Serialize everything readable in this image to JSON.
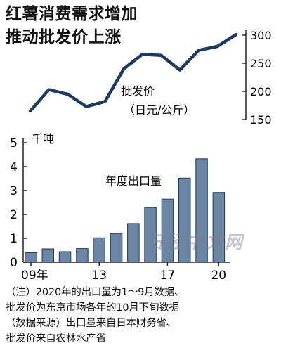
{
  "title_lines": [
    "红薯消费需求增加",
    "推动批发价上涨"
  ],
  "watermark": "日经中文网",
  "notes": [
    "（注）2020年的出口量为1～9月数据、",
    "批发价为东京市场各年的10月下旬数据",
    "（数据来源）出口量来自日本财务省、",
    "批发价来自农林水产省"
  ],
  "colors": {
    "line": "#1f3a5a",
    "bar": "#6a86a4",
    "bar_edge": "#1f3a5a",
    "axis": "#222222"
  },
  "chart_data": [
    {
      "type": "line",
      "series": [
        {
          "name": "批发价",
          "values": [
            165,
            203,
            195,
            173,
            182,
            240,
            266,
            264,
            238,
            273,
            280,
            301
          ]
        }
      ],
      "x": [
        "09",
        "10",
        "11",
        "12",
        "13",
        "14",
        "15",
        "16",
        "17",
        "18",
        "19",
        "20"
      ],
      "ylabel_lines": [
        "批发价",
        "（日元/公斤）"
      ],
      "yticks": [
        "300",
        "250",
        "200",
        "150"
      ],
      "ylim": [
        150,
        310
      ],
      "axis_position": "right",
      "grid": false
    },
    {
      "type": "bar",
      "categories": [
        "09",
        "10",
        "11",
        "12",
        "13",
        "14",
        "15",
        "16",
        "17",
        "18",
        "19",
        "20"
      ],
      "series": [
        {
          "name": "年度出口量",
          "values": [
            0.4,
            0.56,
            0.44,
            0.57,
            1.02,
            1.2,
            1.62,
            2.29,
            2.64,
            3.52,
            4.33,
            2.92
          ]
        }
      ],
      "yunit": "千吨",
      "yticks": [
        "5",
        "4",
        "3",
        "2",
        "1",
        "0"
      ],
      "xticks": [
        [
          "09年",
          0
        ],
        [
          "13",
          4
        ],
        [
          "17",
          8
        ],
        [
          "20",
          11
        ]
      ],
      "ylim": [
        0,
        5
      ],
      "axis_position": "left",
      "grid": false
    }
  ]
}
